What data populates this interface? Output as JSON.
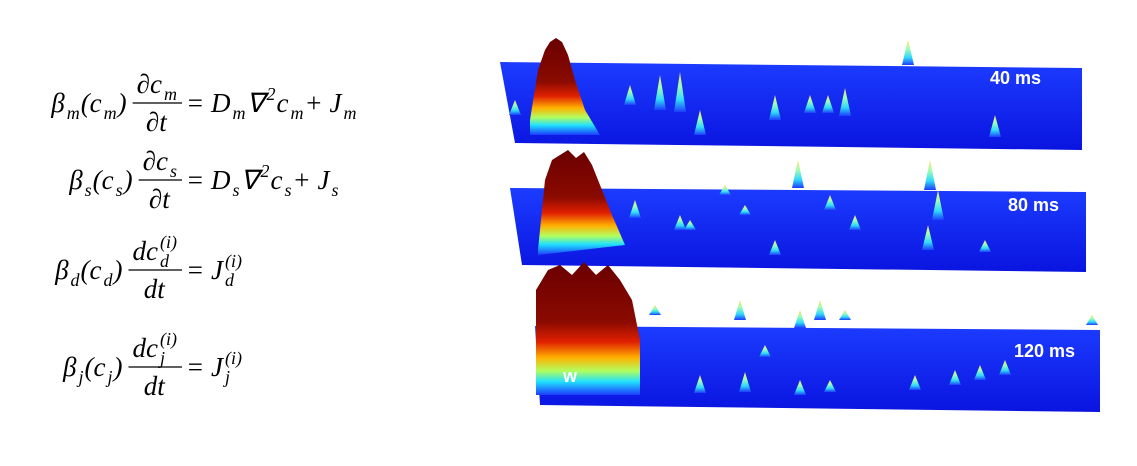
{
  "equations": [
    {
      "lhs": [
        {
          "text": "β",
          "pos": "base"
        },
        {
          "text": "m",
          "pos": "sub"
        },
        {
          "text": " (c",
          "pos": "base"
        },
        {
          "text": "m",
          "pos": "sub"
        },
        {
          "text": ")",
          "pos": "base"
        }
      ],
      "numerator": [
        {
          "text": "∂c",
          "pos": "base"
        },
        {
          "text": "m",
          "pos": "sub"
        }
      ],
      "denominator": [
        {
          "text": "∂t",
          "pos": "base"
        }
      ],
      "rhs": [
        {
          "text": "= D",
          "pos": "base"
        },
        {
          "text": "m",
          "pos": "sub"
        },
        {
          "text": "∇",
          "pos": "base"
        },
        {
          "text": "2",
          "pos": "sup"
        },
        {
          "text": "c",
          "pos": "base"
        },
        {
          "text": "m",
          "pos": "sub"
        },
        {
          "text": " + J",
          "pos": "base"
        },
        {
          "text": "m",
          "pos": "sub"
        }
      ]
    },
    {
      "lhs": [
        {
          "text": "β",
          "pos": "base"
        },
        {
          "text": "s",
          "pos": "sub"
        },
        {
          "text": " (c",
          "pos": "base"
        },
        {
          "text": "s",
          "pos": "sub"
        },
        {
          "text": ")",
          "pos": "base"
        }
      ],
      "numerator": [
        {
          "text": "∂c",
          "pos": "base"
        },
        {
          "text": "s",
          "pos": "sub"
        }
      ],
      "denominator": [
        {
          "text": "∂t",
          "pos": "base"
        }
      ],
      "rhs": [
        {
          "text": "= D",
          "pos": "base"
        },
        {
          "text": "s",
          "pos": "sub"
        },
        {
          "text": "∇",
          "pos": "base"
        },
        {
          "text": "2",
          "pos": "sup"
        },
        {
          "text": "c",
          "pos": "base"
        },
        {
          "text": "s",
          "pos": "sub"
        },
        {
          "text": " + J",
          "pos": "base"
        },
        {
          "text": "s",
          "pos": "sub"
        }
      ]
    },
    {
      "lhs": [
        {
          "text": "β",
          "pos": "base"
        },
        {
          "text": "d",
          "pos": "sub"
        },
        {
          "text": " (c",
          "pos": "base"
        },
        {
          "text": "d",
          "pos": "sub"
        },
        {
          "text": ")",
          "pos": "base"
        }
      ],
      "numerator": [
        {
          "text": "dc",
          "pos": "base"
        },
        {
          "text": "(i)",
          "pos": "sup"
        },
        {
          "text": "d",
          "pos": "sub"
        }
      ],
      "denominator": [
        {
          "text": "dt",
          "pos": "base"
        }
      ],
      "rhs": [
        {
          "text": "= J",
          "pos": "base"
        },
        {
          "text": "(i)",
          "pos": "sup"
        },
        {
          "text": "d",
          "pos": "sub"
        }
      ]
    },
    {
      "lhs": [
        {
          "text": "β",
          "pos": "base"
        },
        {
          "text": "j",
          "pos": "sub"
        },
        {
          "text": " (c",
          "pos": "base"
        },
        {
          "text": "j",
          "pos": "sub"
        },
        {
          "text": ")",
          "pos": "base"
        }
      ],
      "numerator": [
        {
          "text": "dc",
          "pos": "base"
        },
        {
          "text": "(i)",
          "pos": "sup"
        },
        {
          "text": "j",
          "pos": "sub"
        }
      ],
      "denominator": [
        {
          "text": "dt",
          "pos": "base"
        }
      ],
      "rhs": [
        {
          "text": "= J",
          "pos": "base"
        },
        {
          "text": "(i)",
          "pos": "sup"
        },
        {
          "text": "j",
          "pos": "sub"
        }
      ]
    }
  ],
  "panels": [
    {
      "label": "40 ms"
    },
    {
      "label": "80 ms"
    },
    {
      "label": "120 ms"
    }
  ],
  "wave_label": "w"
}
